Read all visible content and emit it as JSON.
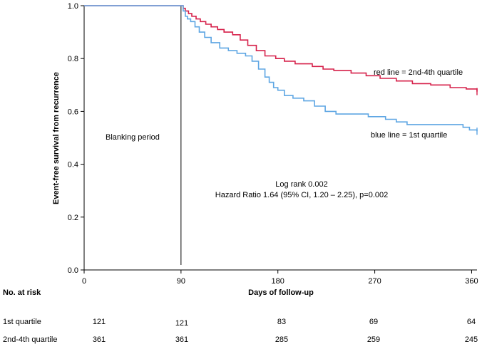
{
  "chart_data": {
    "type": "line",
    "title": "",
    "xlabel": "Days of follow-up",
    "ylabel": "Event-free survival from recurrence",
    "xlim": [
      0,
      365
    ],
    "ylim": [
      0.0,
      1.0
    ],
    "x_ticks": [
      0,
      90,
      180,
      270,
      360
    ],
    "y_ticks": [
      0.0,
      0.2,
      0.4,
      0.6,
      0.8,
      1.0
    ],
    "y_tick_labels": [
      "0.0",
      "0.2",
      "0.4",
      "0.6",
      "0.8",
      "1.0"
    ],
    "grid": false,
    "blanking_day": 90,
    "series": [
      {
        "name": "2nd-4th quartile",
        "color": "#d6204a",
        "points": [
          [
            0,
            1.0
          ],
          [
            90,
            1.0
          ],
          [
            92,
            0.99
          ],
          [
            94,
            0.98
          ],
          [
            97,
            0.97
          ],
          [
            100,
            0.96
          ],
          [
            104,
            0.95
          ],
          [
            108,
            0.94
          ],
          [
            113,
            0.93
          ],
          [
            118,
            0.92
          ],
          [
            124,
            0.91
          ],
          [
            130,
            0.9
          ],
          [
            138,
            0.89
          ],
          [
            145,
            0.87
          ],
          [
            152,
            0.85
          ],
          [
            160,
            0.83
          ],
          [
            168,
            0.81
          ],
          [
            178,
            0.8
          ],
          [
            186,
            0.79
          ],
          [
            196,
            0.78
          ],
          [
            212,
            0.77
          ],
          [
            222,
            0.76
          ],
          [
            232,
            0.755
          ],
          [
            248,
            0.745
          ],
          [
            262,
            0.735
          ],
          [
            275,
            0.725
          ],
          [
            290,
            0.715
          ],
          [
            305,
            0.705
          ],
          [
            322,
            0.7
          ],
          [
            340,
            0.69
          ],
          [
            355,
            0.685
          ],
          [
            365,
            0.675
          ]
        ]
      },
      {
        "name": "1st quartile",
        "color": "#5ea6e3",
        "points": [
          [
            0,
            1.0
          ],
          [
            90,
            1.0
          ],
          [
            92,
            0.98
          ],
          [
            94,
            0.96
          ],
          [
            96,
            0.95
          ],
          [
            99,
            0.94
          ],
          [
            103,
            0.92
          ],
          [
            107,
            0.9
          ],
          [
            112,
            0.88
          ],
          [
            118,
            0.86
          ],
          [
            126,
            0.84
          ],
          [
            134,
            0.83
          ],
          [
            142,
            0.82
          ],
          [
            150,
            0.81
          ],
          [
            156,
            0.79
          ],
          [
            162,
            0.76
          ],
          [
            168,
            0.73
          ],
          [
            172,
            0.71
          ],
          [
            176,
            0.69
          ],
          [
            180,
            0.68
          ],
          [
            186,
            0.66
          ],
          [
            194,
            0.65
          ],
          [
            204,
            0.64
          ],
          [
            214,
            0.62
          ],
          [
            224,
            0.6
          ],
          [
            234,
            0.59
          ],
          [
            254,
            0.59
          ],
          [
            264,
            0.58
          ],
          [
            280,
            0.57
          ],
          [
            290,
            0.56
          ],
          [
            300,
            0.55
          ],
          [
            340,
            0.55
          ],
          [
            352,
            0.54
          ],
          [
            358,
            0.53
          ],
          [
            365,
            0.525
          ]
        ]
      }
    ],
    "annotations": {
      "blanking": "Blanking period",
      "red_legend": "red line = 2nd-4th quartile",
      "blue_legend": "blue line = 1st quartile",
      "logrank": "Log rank 0.002",
      "hazard": "Hazard Ratio 1.64 (95% CI, 1.20 – 2.25), p=0.002"
    },
    "risk_table": {
      "title": "No. at risk",
      "rows": [
        {
          "label": "1st quartile",
          "values": [
            "121",
            "121",
            "83",
            "69",
            "64"
          ]
        },
        {
          "label": "2nd-4th quartile",
          "values": [
            "361",
            "361",
            "285",
            "259",
            "245"
          ]
        }
      ]
    }
  }
}
